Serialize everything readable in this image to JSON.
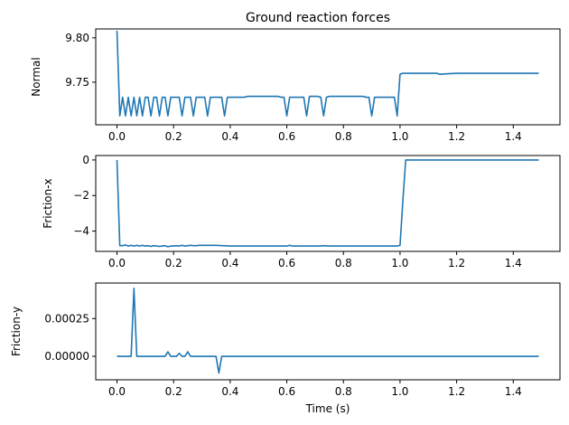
{
  "title": "Ground reaction forces",
  "chart_data": [
    {
      "type": "line",
      "ylabel": "Normal",
      "xlabel": "",
      "xlim": [
        -0.075,
        1.565
      ],
      "ylim": [
        9.702,
        9.81
      ],
      "xticks": [
        0.0,
        0.2,
        0.4,
        0.6,
        0.8,
        1.0,
        1.2,
        1.4
      ],
      "xtick_labels": [
        "0.0",
        "0.2",
        "0.4",
        "0.6",
        "0.8",
        "1.0",
        "1.2",
        "1.4"
      ],
      "yticks": [
        9.75,
        9.8
      ],
      "ytick_labels": [
        "9.75",
        "9.80"
      ],
      "grid": false,
      "series": [
        {
          "color": "#1f77b4",
          "x": [
            0.0,
            0.01,
            0.02,
            0.03,
            0.04,
            0.05,
            0.06,
            0.07,
            0.08,
            0.09,
            0.1,
            0.11,
            0.12,
            0.13,
            0.14,
            0.15,
            0.16,
            0.17,
            0.18,
            0.19,
            0.2,
            0.21,
            0.22,
            0.23,
            0.24,
            0.25,
            0.26,
            0.27,
            0.28,
            0.29,
            0.3,
            0.31,
            0.32,
            0.33,
            0.34,
            0.35,
            0.36,
            0.37,
            0.38,
            0.39,
            0.4,
            0.41,
            0.42,
            0.43,
            0.44,
            0.45,
            0.46,
            0.47,
            0.48,
            0.49,
            0.5,
            0.51,
            0.52,
            0.53,
            0.54,
            0.55,
            0.56,
            0.57,
            0.58,
            0.59,
            0.6,
            0.61,
            0.62,
            0.63,
            0.64,
            0.65,
            0.66,
            0.67,
            0.68,
            0.69,
            0.7,
            0.71,
            0.72,
            0.73,
            0.74,
            0.75,
            0.76,
            0.77,
            0.78,
            0.79,
            0.8,
            0.81,
            0.82,
            0.83,
            0.84,
            0.85,
            0.86,
            0.87,
            0.88,
            0.89,
            0.9,
            0.91,
            0.92,
            0.93,
            0.94,
            0.95,
            0.96,
            0.97,
            0.98,
            0.99,
            1.0,
            1.01,
            1.02,
            1.05,
            1.1,
            1.13,
            1.14,
            1.2,
            1.3,
            1.4,
            1.49
          ],
          "y": [
            9.808,
            9.712,
            9.733,
            9.712,
            9.733,
            9.712,
            9.733,
            9.712,
            9.733,
            9.712,
            9.733,
            9.733,
            9.712,
            9.733,
            9.733,
            9.712,
            9.733,
            9.733,
            9.712,
            9.733,
            9.733,
            9.733,
            9.733,
            9.712,
            9.733,
            9.733,
            9.733,
            9.712,
            9.733,
            9.733,
            9.733,
            9.733,
            9.712,
            9.733,
            9.733,
            9.733,
            9.733,
            9.733,
            9.712,
            9.733,
            9.733,
            9.733,
            9.733,
            9.733,
            9.733,
            9.733,
            9.734,
            9.734,
            9.734,
            9.734,
            9.734,
            9.734,
            9.734,
            9.734,
            9.734,
            9.734,
            9.734,
            9.734,
            9.733,
            9.733,
            9.712,
            9.733,
            9.733,
            9.733,
            9.733,
            9.733,
            9.733,
            9.712,
            9.734,
            9.734,
            9.734,
            9.734,
            9.733,
            9.712,
            9.733,
            9.734,
            9.734,
            9.734,
            9.734,
            9.734,
            9.734,
            9.734,
            9.734,
            9.734,
            9.734,
            9.734,
            9.734,
            9.734,
            9.733,
            9.733,
            9.712,
            9.733,
            9.733,
            9.733,
            9.733,
            9.733,
            9.733,
            9.733,
            9.733,
            9.712,
            9.759,
            9.76,
            9.76,
            9.76,
            9.76,
            9.76,
            9.759,
            9.76,
            9.76,
            9.76,
            9.76
          ]
        }
      ]
    },
    {
      "type": "line",
      "ylabel": "Friction-x",
      "xlabel": "",
      "xlim": [
        -0.075,
        1.565
      ],
      "ylim": [
        -5.14,
        0.25
      ],
      "xticks": [
        0.0,
        0.2,
        0.4,
        0.6,
        0.8,
        1.0,
        1.2,
        1.4
      ],
      "xtick_labels": [
        "0.0",
        "0.2",
        "0.4",
        "0.6",
        "0.8",
        "1.0",
        "1.2",
        "1.4"
      ],
      "yticks": [
        0,
        -2,
        -4
      ],
      "ytick_labels": [
        "0",
        "−2",
        "−4"
      ],
      "grid": false,
      "series": [
        {
          "color": "#1f77b4",
          "x": [
            0.0,
            0.01,
            0.02,
            0.03,
            0.04,
            0.05,
            0.06,
            0.07,
            0.08,
            0.09,
            0.1,
            0.11,
            0.12,
            0.13,
            0.14,
            0.15,
            0.16,
            0.17,
            0.18,
            0.19,
            0.2,
            0.21,
            0.22,
            0.23,
            0.24,
            0.25,
            0.26,
            0.27,
            0.28,
            0.29,
            0.3,
            0.32,
            0.35,
            0.4,
            0.45,
            0.5,
            0.55,
            0.6,
            0.61,
            0.62,
            0.65,
            0.7,
            0.72,
            0.73,
            0.75,
            0.8,
            0.85,
            0.9,
            0.95,
            0.99,
            1.0,
            1.01,
            1.02,
            1.1,
            1.2,
            1.3,
            1.4,
            1.49
          ],
          "y": [
            0.0,
            -4.82,
            -4.82,
            -4.78,
            -4.84,
            -4.8,
            -4.84,
            -4.8,
            -4.84,
            -4.8,
            -4.84,
            -4.82,
            -4.86,
            -4.82,
            -4.84,
            -4.86,
            -4.84,
            -4.82,
            -4.88,
            -4.84,
            -4.84,
            -4.82,
            -4.84,
            -4.8,
            -4.84,
            -4.82,
            -4.8,
            -4.82,
            -4.82,
            -4.8,
            -4.8,
            -4.8,
            -4.8,
            -4.84,
            -4.84,
            -4.84,
            -4.84,
            -4.84,
            -4.8,
            -4.84,
            -4.84,
            -4.84,
            -4.84,
            -4.82,
            -4.84,
            -4.84,
            -4.84,
            -4.84,
            -4.84,
            -4.84,
            -4.8,
            -2.3,
            0.0,
            0.0,
            0.0,
            0.0,
            0.0,
            0.0
          ]
        }
      ]
    },
    {
      "type": "line",
      "ylabel": "Friction-y",
      "xlabel": "Time (s)",
      "xlim": [
        -0.075,
        1.565
      ],
      "ylim": [
        -0.000155,
        0.000485
      ],
      "xticks": [
        0.0,
        0.2,
        0.4,
        0.6,
        0.8,
        1.0,
        1.2,
        1.4
      ],
      "xtick_labels": [
        "0.0",
        "0.2",
        "0.4",
        "0.6",
        "0.8",
        "1.0",
        "1.2",
        "1.4"
      ],
      "yticks": [
        0.0,
        0.00025
      ],
      "ytick_labels": [
        "0.00000",
        "0.00025"
      ],
      "grid": false,
      "series": [
        {
          "color": "#1f77b4",
          "x": [
            0.0,
            0.05,
            0.06,
            0.07,
            0.17,
            0.18,
            0.19,
            0.21,
            0.22,
            0.23,
            0.24,
            0.25,
            0.26,
            0.35,
            0.36,
            0.37,
            0.5,
            1.0,
            1.49
          ],
          "y": [
            0.0,
            0.0,
            0.00045,
            0.0,
            0.0,
            3e-05,
            0.0,
            0.0,
            2e-05,
            0.0,
            0.0,
            3e-05,
            0.0,
            0.0,
            -0.00011,
            0.0,
            0.0,
            0.0,
            0.0
          ]
        }
      ]
    }
  ]
}
